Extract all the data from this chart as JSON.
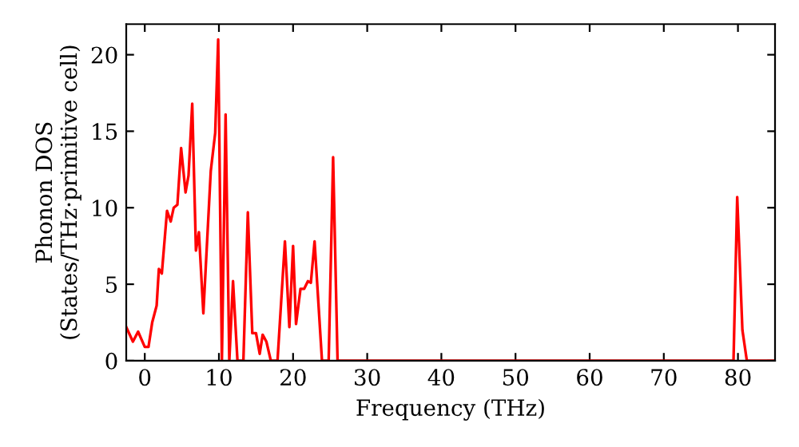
{
  "chart_data": {
    "type": "line",
    "xlabel": "Frequency (THz)",
    "ylabel": "Phonon DOS\n(States/THz·primitive cell)",
    "xlim": [
      -2.5,
      85
    ],
    "ylim": [
      0,
      22
    ],
    "xticks": [
      0,
      10,
      20,
      30,
      40,
      50,
      60,
      70,
      80
    ],
    "yticks": [
      0,
      5,
      10,
      15,
      20
    ],
    "grid": false,
    "marker": "none",
    "line_style": "solid",
    "series": [
      {
        "color": "#ff0000",
        "x": [
          -2.5,
          -1.6,
          -0.9,
          0,
          0.5,
          1.0,
          1.6,
          1.9,
          2.3,
          3.0,
          3.5,
          3.9,
          4.4,
          4.9,
          5.5,
          5.9,
          6.4,
          6.9,
          7.3,
          7.9,
          8.9,
          9.5,
          9.9,
          10.4,
          10.9,
          11.4,
          11.9,
          12.5,
          13.3,
          13.9,
          14.5,
          15.0,
          15.5,
          15.9,
          16.4,
          17.0,
          17.9,
          18.9,
          19.5,
          20.0,
          20.4,
          21.0,
          21.5,
          22.0,
          22.4,
          22.9,
          23.9,
          24.8,
          25.4,
          26.0,
          79.4,
          79.9,
          80.6,
          81.2,
          85
        ],
        "values": [
          2.2,
          1.25,
          1.9,
          0.9,
          0.9,
          2.5,
          3.6,
          6.0,
          5.7,
          9.8,
          9.1,
          10.0,
          10.2,
          13.9,
          11.0,
          12.1,
          16.8,
          7.2,
          8.4,
          3.1,
          12.4,
          14.9,
          21,
          0,
          16.1,
          0,
          5.2,
          0,
          0,
          9.7,
          1.8,
          1.8,
          0.45,
          1.7,
          1.25,
          0,
          0,
          7.8,
          2.2,
          7.5,
          2.4,
          4.7,
          4.7,
          5.2,
          5.1,
          7.8,
          0,
          0,
          13.3,
          0,
          0,
          10.7,
          2.0,
          0,
          0
        ]
      }
    ]
  }
}
